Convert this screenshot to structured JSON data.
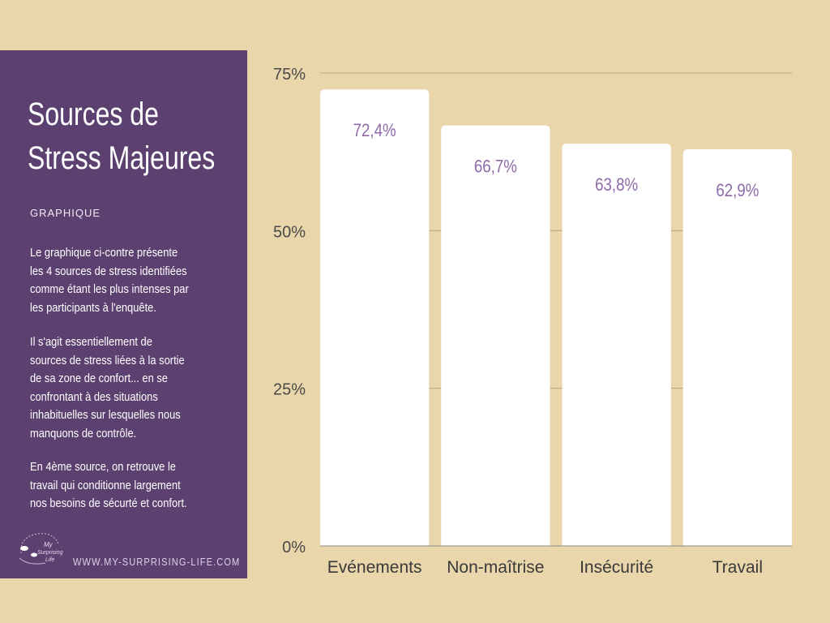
{
  "panel": {
    "title_lines": [
      "Sources de",
      "Stress Majeures"
    ],
    "subtitle": "GRAPHIQUE",
    "paragraphs": [
      [
        "Le graphique ci-contre présente",
        "les 4 sources de stress identifiées",
        "comme étant les plus intenses par",
        "les participants à l'enquête."
      ],
      [
        "Il s'agit essentiellement de",
        "sources de stress liées à la sortie",
        "de sa zone de confort... en se",
        "confrontant à des situations",
        "inhabituelles sur lesquelles nous",
        "manquons de contrôle."
      ],
      [
        "En 4ème source, on retrouve le",
        "travail qui conditionne largement",
        "nos besoins de sécurté et confort."
      ]
    ],
    "logo_text": "My Surprising Life",
    "website": "WWW.MY-SURPRISING-LIFE.COM"
  },
  "colors": {
    "background": "#e9d6aa",
    "panel": "#5c4170",
    "bar": "#ffffff",
    "label": "#8e6aa8",
    "grid": "#b9a97f"
  },
  "chart_data": {
    "type": "bar",
    "categories": [
      "Evénements",
      "Non-maîtrise",
      "Insécurité",
      "Travail"
    ],
    "values": [
      72.4,
      66.7,
      63.8,
      62.9
    ],
    "data_labels": [
      "72,4%",
      "66,7%",
      "63,8%",
      "62,9%"
    ],
    "yticks": [
      0,
      25,
      50,
      75
    ],
    "ytick_labels": [
      "0%",
      "25%",
      "50%",
      "75%"
    ],
    "ylim": [
      0,
      75
    ],
    "grid": true
  }
}
